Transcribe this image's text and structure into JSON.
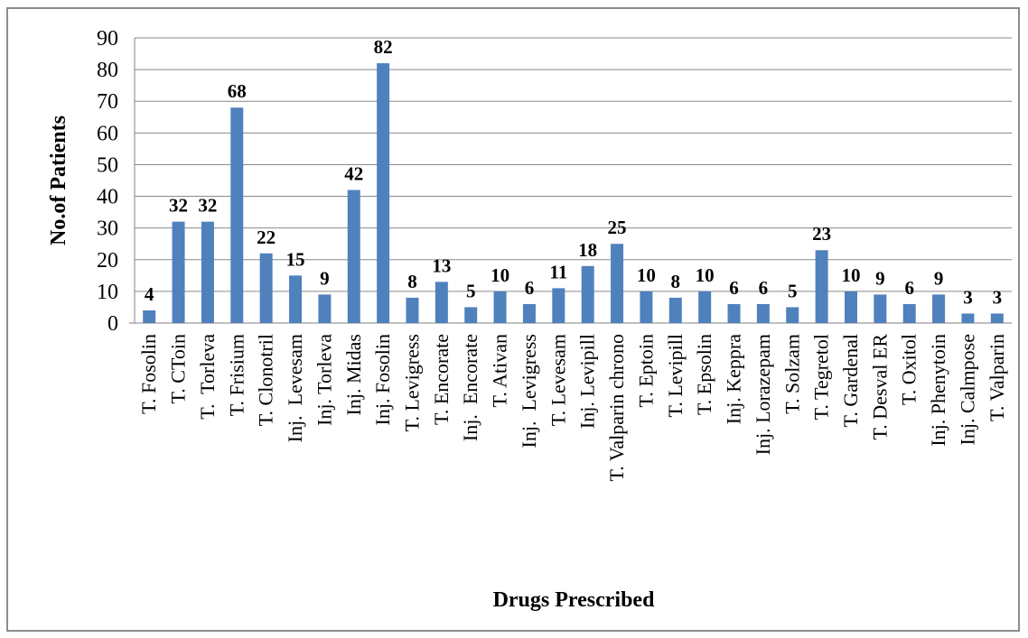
{
  "chart_data": {
    "type": "bar",
    "xlabel": "Drugs Prescribed",
    "ylabel": "No.of Patients",
    "ylim": [
      0,
      90
    ],
    "y_ticks": [
      0,
      10,
      20,
      30,
      40,
      50,
      60,
      70,
      80,
      90
    ],
    "grid": true,
    "legend": "none",
    "bar_color": "#4f81bd",
    "categories": [
      "T. Fosolin",
      "T. CToin",
      "T.  Torleva",
      "T. Frisium",
      "T. Clonotril",
      "Inj.  Levesam",
      "Inj. Torleva",
      "Inj. Midas",
      "Inj. Fosolin",
      "T. Levigress",
      "T. Encorate",
      "Inj.  Encorate",
      "T. Ativan",
      "Inj.  Levigress",
      "T. Levesam",
      "Inj. Levipill",
      "T. Valparin chrono",
      "T. Eptoin",
      "T. Levipill",
      "T. Epsolin",
      "Inj. Keppra",
      "Inj. Lorazepam",
      "T. Solzam",
      "T. Tegretol",
      "T. Gardenal",
      "T. Desval ER",
      "T. Oxitol",
      "Inj. Phenytoin",
      "Inj. Calmpose",
      "T. Valparin"
    ],
    "values": [
      4,
      32,
      32,
      68,
      22,
      15,
      9,
      42,
      82,
      8,
      13,
      5,
      10,
      6,
      11,
      18,
      25,
      10,
      8,
      10,
      6,
      6,
      5,
      23,
      10,
      9,
      6,
      9,
      3,
      3
    ]
  }
}
